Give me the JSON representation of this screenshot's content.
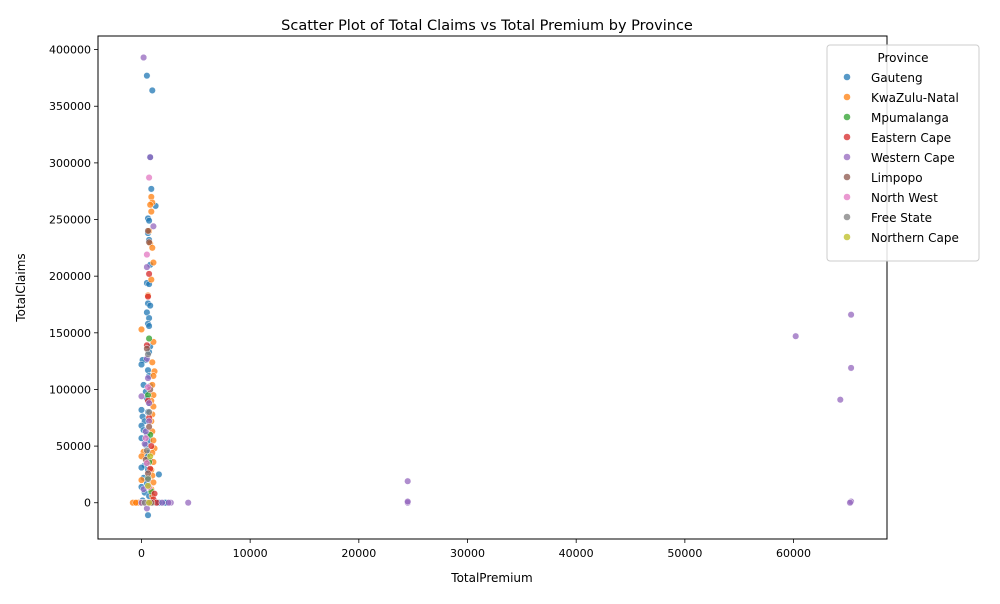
{
  "chart_data": {
    "type": "scatter",
    "title": "Scatter Plot of Total Claims vs Total Premium by Province",
    "xlabel": "TotalPremium",
    "ylabel": "TotalClaims",
    "xlim": [
      -4000,
      68600
    ],
    "ylim": [
      -32000,
      412000
    ],
    "xticks": [
      0,
      10000,
      20000,
      30000,
      40000,
      50000,
      60000
    ],
    "xtick_labels": [
      "0",
      "10000",
      "20000",
      "30000",
      "40000",
      "50000",
      "60000"
    ],
    "yticks": [
      0,
      50000,
      100000,
      150000,
      200000,
      250000,
      300000,
      350000,
      400000
    ],
    "ytick_labels": [
      "0",
      "50000",
      "100000",
      "150000",
      "200000",
      "250000",
      "300000",
      "350000",
      "400000"
    ],
    "grid": false,
    "legend": {
      "title": "Province",
      "placement": "top-right"
    },
    "series": [
      {
        "name": "Gauteng",
        "color": "#1f77b4",
        "points": [
          [
            500,
            377000
          ],
          [
            1000,
            364000
          ],
          [
            800,
            305000
          ],
          [
            900,
            277000
          ],
          [
            1300,
            262000
          ],
          [
            600,
            251000
          ],
          [
            700,
            249000
          ],
          [
            600,
            238000
          ],
          [
            700,
            232000
          ],
          [
            800,
            210000
          ],
          [
            500,
            194000
          ],
          [
            700,
            193000
          ],
          [
            600,
            176000
          ],
          [
            800,
            174000
          ],
          [
            500,
            168000
          ],
          [
            700,
            163000
          ],
          [
            600,
            158000
          ],
          [
            700,
            156000
          ],
          [
            800,
            138000
          ],
          [
            700,
            133000
          ],
          [
            400,
            126000
          ],
          [
            100,
            126000
          ],
          [
            0,
            122000
          ],
          [
            600,
            117000
          ],
          [
            700,
            112000
          ],
          [
            800,
            103000
          ],
          [
            200,
            104000
          ],
          [
            400,
            98000
          ],
          [
            500,
            92000
          ],
          [
            700,
            88000
          ],
          [
            600,
            80000
          ],
          [
            0,
            82000
          ],
          [
            100,
            76000
          ],
          [
            300,
            72000
          ],
          [
            0,
            68000
          ],
          [
            200,
            64000
          ],
          [
            500,
            60000
          ],
          [
            0,
            57000
          ],
          [
            700,
            55000
          ],
          [
            400,
            51000
          ],
          [
            600,
            44000
          ],
          [
            500,
            41000
          ],
          [
            800,
            37000
          ],
          [
            300,
            33000
          ],
          [
            0,
            31000
          ],
          [
            600,
            29000
          ],
          [
            1600,
            25000
          ],
          [
            200,
            22000
          ],
          [
            500,
            17000
          ],
          [
            0,
            14000
          ],
          [
            300,
            9000
          ],
          [
            700,
            6000
          ],
          [
            600,
            -11000
          ],
          [
            100,
            2000
          ],
          [
            900,
            0
          ],
          [
            1200,
            0
          ],
          [
            1500,
            0
          ],
          [
            1800,
            0
          ],
          [
            2100,
            0
          ],
          [
            2300,
            0
          ],
          [
            2200,
            0
          ],
          [
            1600,
            0
          ],
          [
            300,
            0
          ],
          [
            0,
            0
          ]
        ]
      },
      {
        "name": "KwaZulu-Natal",
        "color": "#ff7f0e",
        "points": [
          [
            900,
            270000
          ],
          [
            1000,
            265000
          ],
          [
            800,
            263000
          ],
          [
            900,
            257000
          ],
          [
            700,
            240000
          ],
          [
            800,
            229000
          ],
          [
            1000,
            225000
          ],
          [
            1100,
            212000
          ],
          [
            900,
            197000
          ],
          [
            600,
            183000
          ],
          [
            0,
            153000
          ],
          [
            1100,
            142000
          ],
          [
            1000,
            124000
          ],
          [
            1200,
            116000
          ],
          [
            1100,
            112000
          ],
          [
            1000,
            104000
          ],
          [
            1100,
            95000
          ],
          [
            900,
            90000
          ],
          [
            1100,
            85000
          ],
          [
            1000,
            78000
          ],
          [
            900,
            72000
          ],
          [
            1000,
            63000
          ],
          [
            1100,
            55000
          ],
          [
            1200,
            48000
          ],
          [
            1000,
            44000
          ],
          [
            200,
            45000
          ],
          [
            0,
            41000
          ],
          [
            1100,
            36000
          ],
          [
            900,
            29000
          ],
          [
            1000,
            24000
          ],
          [
            1100,
            18000
          ],
          [
            0,
            20000
          ],
          [
            900,
            12000
          ],
          [
            1000,
            6000
          ],
          [
            -300,
            0
          ],
          [
            -600,
            0
          ],
          [
            -800,
            0
          ],
          [
            -500,
            0
          ],
          [
            0,
            0
          ],
          [
            500,
            0
          ],
          [
            800,
            0
          ]
        ]
      },
      {
        "name": "Mpumalanga",
        "color": "#2ca02c",
        "points": [
          [
            700,
            145000
          ],
          [
            600,
            95000
          ],
          [
            800,
            60000
          ],
          [
            700,
            36000
          ],
          [
            600,
            22000
          ],
          [
            900,
            10000
          ],
          [
            800,
            0
          ],
          [
            1000,
            0
          ]
        ]
      },
      {
        "name": "Eastern Cape",
        "color": "#d62728",
        "points": [
          [
            700,
            202000
          ],
          [
            600,
            182000
          ],
          [
            500,
            139000
          ],
          [
            600,
            90000
          ],
          [
            700,
            75000
          ],
          [
            900,
            50000
          ],
          [
            800,
            30000
          ],
          [
            1200,
            8000
          ],
          [
            1100,
            3000
          ],
          [
            700,
            0
          ],
          [
            1400,
            0
          ]
        ]
      },
      {
        "name": "Western Cape",
        "color": "#9467bd",
        "points": [
          [
            200,
            393000
          ],
          [
            800,
            305000
          ],
          [
            1100,
            244000
          ],
          [
            500,
            208000
          ],
          [
            65300,
            166000
          ],
          [
            60200,
            147000
          ],
          [
            65300,
            119000
          ],
          [
            64300,
            91000
          ],
          [
            24500,
            19000
          ],
          [
            24500,
            0
          ],
          [
            24500,
            1000
          ],
          [
            65300,
            1000
          ],
          [
            65200,
            0
          ],
          [
            700,
            72000
          ],
          [
            400,
            63000
          ],
          [
            600,
            110000
          ],
          [
            500,
            127000
          ],
          [
            700,
            88000
          ],
          [
            300,
            52000
          ],
          [
            500,
            -5000
          ],
          [
            200,
            12000
          ],
          [
            0,
            94000
          ],
          [
            4300,
            0
          ],
          [
            2700,
            0
          ],
          [
            2500,
            0
          ],
          [
            1900,
            0
          ],
          [
            0,
            0
          ]
        ]
      },
      {
        "name": "Limpopo",
        "color": "#8c564b",
        "points": [
          [
            600,
            240000
          ],
          [
            700,
            230000
          ],
          [
            500,
            136000
          ],
          [
            800,
            100000
          ],
          [
            700,
            67000
          ],
          [
            400,
            38000
          ],
          [
            600,
            26000
          ],
          [
            900,
            0
          ]
        ]
      },
      {
        "name": "North West",
        "color": "#e377c2",
        "points": [
          [
            700,
            287000
          ],
          [
            500,
            219000
          ],
          [
            600,
            102000
          ],
          [
            400,
            57000
          ],
          [
            500,
            35000
          ],
          [
            700,
            14000
          ],
          [
            600,
            0
          ]
        ]
      },
      {
        "name": "Free State",
        "color": "#7f7f7f",
        "points": [
          [
            600,
            131000
          ],
          [
            700,
            80000
          ],
          [
            500,
            46000
          ],
          [
            600,
            21000
          ],
          [
            300,
            0
          ]
        ]
      },
      {
        "name": "Northern Cape",
        "color": "#bcbd22",
        "points": [
          [
            800,
            41000
          ],
          [
            600,
            15000
          ],
          [
            700,
            0
          ]
        ]
      }
    ]
  }
}
